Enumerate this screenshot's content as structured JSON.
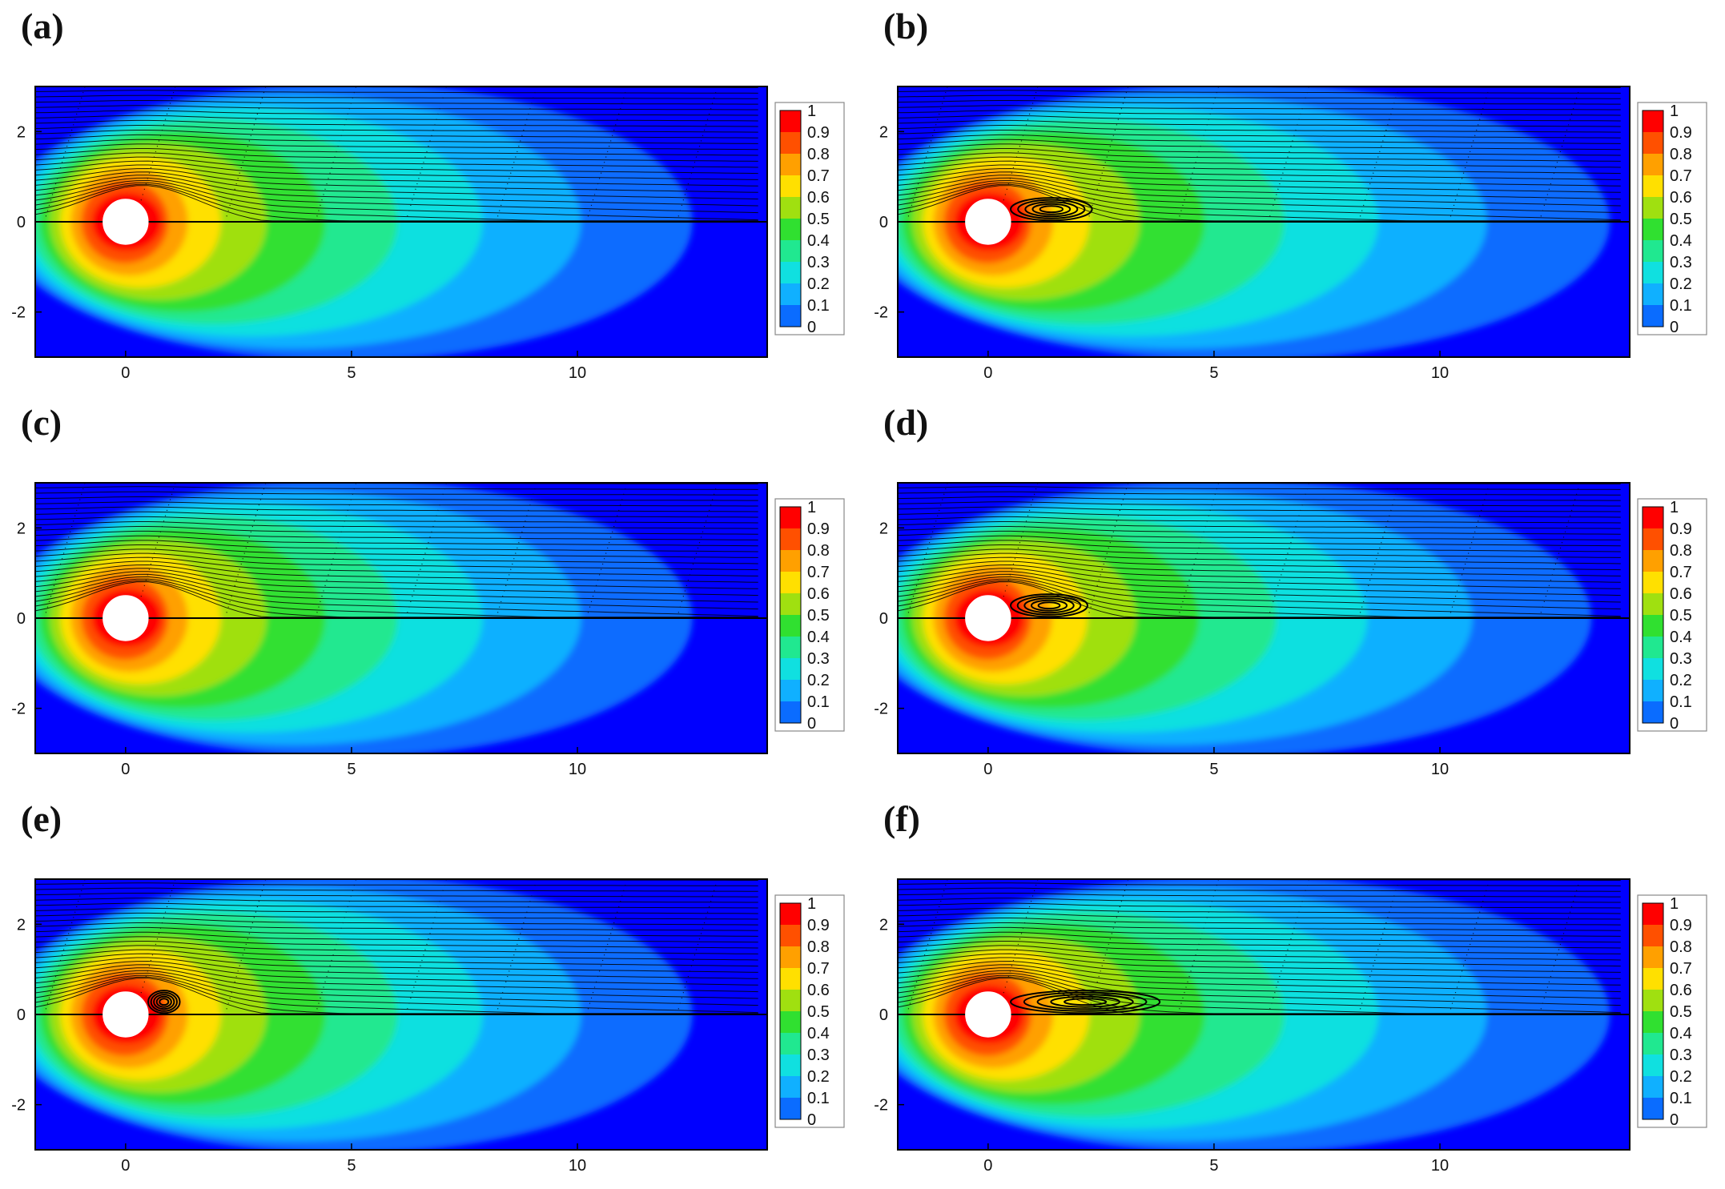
{
  "figure": {
    "panels": [
      {
        "label": "(a)"
      },
      {
        "label": "(b)"
      },
      {
        "label": "(c)"
      },
      {
        "label": "(d)"
      },
      {
        "label": "(e)"
      },
      {
        "label": "(f)"
      }
    ]
  },
  "chart_data": [
    {
      "type": "heatmap",
      "panel": "(a)",
      "xlim": [
        -2,
        14.2
      ],
      "ylim": [
        -3,
        3
      ],
      "x_ticks": [
        0,
        5,
        10
      ],
      "y_ticks": [
        2,
        0,
        -2
      ],
      "colorbar_ticks": [
        "1",
        "0.9",
        "0.8",
        "0.7",
        "0.6",
        "0.5",
        "0.4",
        "0.3",
        "0.2",
        "0.1",
        "0"
      ],
      "colormap": [
        "#0000ff",
        "#0a6cff",
        "#10b0ff",
        "#10e0e0",
        "#20e890",
        "#30e030",
        "#a0e010",
        "#ffe000",
        "#ffa000",
        "#ff5000",
        "#ff0000"
      ],
      "cylinder": {
        "center": [
          0,
          0
        ],
        "radius": 0.5
      },
      "wake_length": 12.5,
      "recirculation_length": 0,
      "streamlines": "upper half"
    },
    {
      "type": "heatmap",
      "panel": "(b)",
      "xlim": [
        -2,
        14.2
      ],
      "ylim": [
        -3,
        3
      ],
      "x_ticks": [
        0,
        5,
        10
      ],
      "y_ticks": [
        2,
        0,
        -2
      ],
      "colorbar_ticks": [
        "1",
        "0.9",
        "0.8",
        "0.7",
        "0.6",
        "0.5",
        "0.4",
        "0.3",
        "0.2",
        "0.1",
        "0"
      ],
      "colormap": [
        "#0000ff",
        "#0a6cff",
        "#10b0ff",
        "#10e0e0",
        "#20e890",
        "#30e030",
        "#a0e010",
        "#ffe000",
        "#ffa000",
        "#ff5000",
        "#ff0000"
      ],
      "cylinder": {
        "center": [
          0,
          0
        ],
        "radius": 0.5
      },
      "wake_length": 14,
      "recirculation_length": 2.3,
      "streamlines": "upper half"
    },
    {
      "type": "heatmap",
      "panel": "(c)",
      "xlim": [
        -2,
        14.2
      ],
      "ylim": [
        -3,
        3
      ],
      "x_ticks": [
        0,
        5,
        10
      ],
      "y_ticks": [
        2,
        0,
        -2
      ],
      "colorbar_ticks": [
        "1",
        "0.9",
        "0.8",
        "0.7",
        "0.6",
        "0.5",
        "0.4",
        "0.3",
        "0.2",
        "0.1",
        "0"
      ],
      "colormap": [
        "#0000ff",
        "#0a6cff",
        "#10b0ff",
        "#10e0e0",
        "#20e890",
        "#30e030",
        "#a0e010",
        "#ffe000",
        "#ffa000",
        "#ff5000",
        "#ff0000"
      ],
      "cylinder": {
        "center": [
          0,
          0
        ],
        "radius": 0.5
      },
      "wake_length": 12.5,
      "recirculation_length": 0,
      "streamlines": "upper half"
    },
    {
      "type": "heatmap",
      "panel": "(d)",
      "xlim": [
        -2,
        14.2
      ],
      "ylim": [
        -3,
        3
      ],
      "x_ticks": [
        0,
        5,
        10
      ],
      "y_ticks": [
        2,
        0,
        -2
      ],
      "colorbar_ticks": [
        "1",
        "0.9",
        "0.8",
        "0.7",
        "0.6",
        "0.5",
        "0.4",
        "0.3",
        "0.2",
        "0.1",
        "0"
      ],
      "colormap": [
        "#0000ff",
        "#0a6cff",
        "#10b0ff",
        "#10e0e0",
        "#20e890",
        "#30e030",
        "#a0e010",
        "#ffe000",
        "#ffa000",
        "#ff5000",
        "#ff0000"
      ],
      "cylinder": {
        "center": [
          0,
          0
        ],
        "radius": 0.5
      },
      "wake_length": 13.5,
      "recirculation_length": 2.2,
      "streamlines": "upper half"
    },
    {
      "type": "heatmap",
      "panel": "(e)",
      "xlim": [
        -2,
        14.2
      ],
      "ylim": [
        -3,
        3
      ],
      "x_ticks": [
        0,
        5,
        10
      ],
      "y_ticks": [
        2,
        0,
        -2
      ],
      "colorbar_ticks": [
        "1",
        "0.9",
        "0.8",
        "0.7",
        "0.6",
        "0.5",
        "0.4",
        "0.3",
        "0.2",
        "0.1",
        "0"
      ],
      "colormap": [
        "#0000ff",
        "#0a6cff",
        "#10b0ff",
        "#10e0e0",
        "#20e890",
        "#30e030",
        "#a0e010",
        "#ffe000",
        "#ffa000",
        "#ff5000",
        "#ff0000"
      ],
      "cylinder": {
        "center": [
          0,
          0
        ],
        "radius": 0.5
      },
      "wake_length": 12.5,
      "recirculation_length": 1.2,
      "streamlines": "upper half"
    },
    {
      "type": "heatmap",
      "panel": "(f)",
      "xlim": [
        -2,
        14.2
      ],
      "ylim": [
        -3,
        3
      ],
      "x_ticks": [
        0,
        5,
        10
      ],
      "y_ticks": [
        2,
        0,
        -2
      ],
      "colorbar_ticks": [
        "1",
        "0.9",
        "0.8",
        "0.7",
        "0.6",
        "0.5",
        "0.4",
        "0.3",
        "0.2",
        "0.1",
        "0"
      ],
      "colormap": [
        "#0000ff",
        "#0a6cff",
        "#10b0ff",
        "#10e0e0",
        "#20e890",
        "#30e030",
        "#a0e010",
        "#ffe000",
        "#ffa000",
        "#ff5000",
        "#ff0000"
      ],
      "cylinder": {
        "center": [
          0,
          0
        ],
        "radius": 0.5
      },
      "wake_length": 14,
      "recirculation_length": 3.8,
      "streamlines": "upper half"
    }
  ]
}
